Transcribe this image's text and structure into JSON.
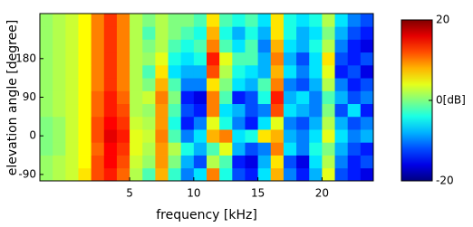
{
  "chart_data": {
    "type": "heatmap",
    "xlabel": "frequency [kHz]",
    "ylabel": "elevation angle [degree]",
    "x": [
      -1.5,
      -0.5,
      0.5,
      1.5,
      2.5,
      3.5,
      4.5,
      5.5,
      6.5,
      7.5,
      8.5,
      9.5,
      10.5,
      11.5,
      12.5,
      13.5,
      14.5,
      15.5,
      16.5,
      17.5,
      18.5,
      19.5,
      20.5,
      21.5,
      22.5,
      23.5
    ],
    "y": [
      -90,
      -60,
      -30,
      0,
      30,
      60,
      90,
      120,
      150,
      180,
      210,
      240,
      270
    ],
    "values": [
      [
        1,
        2,
        3,
        6,
        12,
        14,
        11,
        2,
        -2,
        8,
        -3,
        -10,
        -6,
        10,
        -4,
        -12,
        -14,
        -6,
        8,
        -10,
        -14,
        -8,
        4,
        -12,
        -14,
        -16
      ],
      [
        1,
        2,
        3,
        5,
        12,
        15,
        12,
        3,
        1,
        9,
        0,
        -8,
        -12,
        2,
        -2,
        -14,
        -16,
        -8,
        6,
        -12,
        -16,
        -6,
        2,
        -10,
        -14,
        -12
      ],
      [
        0,
        1,
        3,
        5,
        11,
        15,
        13,
        4,
        2,
        9,
        2,
        -4,
        -8,
        -2,
        4,
        -8,
        -12,
        -10,
        10,
        -6,
        -10,
        -4,
        0,
        -8,
        -12,
        -14
      ],
      [
        0,
        1,
        3,
        5,
        12,
        16,
        14,
        4,
        3,
        10,
        -2,
        -10,
        -6,
        8,
        10,
        -6,
        -4,
        6,
        8,
        -8,
        -10,
        -6,
        4,
        -6,
        -10,
        -8
      ],
      [
        0,
        1,
        3,
        5,
        12,
        15,
        13,
        3,
        2,
        9,
        -4,
        -14,
        -10,
        4,
        -4,
        -10,
        -14,
        -6,
        4,
        -10,
        -12,
        -8,
        2,
        -8,
        -12,
        -10
      ],
      [
        1,
        2,
        3,
        5,
        11,
        14,
        12,
        2,
        1,
        9,
        -2,
        -12,
        -14,
        10,
        -6,
        -8,
        -12,
        -10,
        12,
        -6,
        -8,
        -10,
        0,
        -12,
        -6,
        -14
      ],
      [
        1,
        2,
        3,
        5,
        11,
        14,
        11,
        2,
        3,
        10,
        0,
        -14,
        -16,
        10,
        -2,
        -14,
        -12,
        -4,
        14,
        -8,
        -6,
        -10,
        -2,
        -8,
        -12,
        -10
      ],
      [
        1,
        2,
        3,
        5,
        10,
        13,
        10,
        2,
        0,
        8,
        -2,
        -10,
        -10,
        6,
        0,
        -6,
        -8,
        -2,
        10,
        -10,
        -12,
        -8,
        2,
        -10,
        -14,
        -12
      ],
      [
        1,
        2,
        3,
        5,
        10,
        13,
        10,
        2,
        -2,
        6,
        -6,
        -8,
        -8,
        12,
        2,
        -4,
        -6,
        -8,
        8,
        -6,
        -10,
        -6,
        4,
        -14,
        -12,
        -16
      ],
      [
        1,
        2,
        3,
        5,
        10,
        13,
        10,
        2,
        1,
        4,
        -4,
        -6,
        -4,
        14,
        4,
        -2,
        -2,
        -8,
        10,
        -8,
        -12,
        -6,
        6,
        -12,
        -14,
        -12
      ],
      [
        1,
        2,
        3,
        5,
        10,
        13,
        10,
        2,
        0,
        2,
        -2,
        -4,
        -2,
        10,
        -2,
        -6,
        -2,
        -10,
        8,
        -6,
        -8,
        -4,
        2,
        -10,
        -14,
        -16
      ],
      [
        1,
        2,
        3,
        5,
        10,
        13,
        10,
        2,
        -2,
        2,
        0,
        -2,
        -4,
        8,
        -4,
        -8,
        -4,
        -8,
        6,
        -4,
        -8,
        -6,
        0,
        -8,
        -12,
        -14
      ],
      [
        1,
        2,
        3,
        5,
        10,
        13,
        10,
        2,
        0,
        2,
        0,
        0,
        -2,
        6,
        -2,
        -4,
        -2,
        -6,
        6,
        -4,
        -6,
        -4,
        2,
        -6,
        -10,
        -12
      ]
    ],
    "xlim": [
      -2,
      24
    ],
    "ylim": [
      -105,
      285
    ],
    "xticks": [
      5,
      10,
      15,
      20
    ],
    "yticks": [
      -90,
      0,
      90,
      180
    ],
    "clim": [
      -20,
      20
    ],
    "colorbar_ticks": [
      -20,
      {
        "value": 0,
        "label": "0[dB]"
      },
      20
    ],
    "colormap": "jet"
  }
}
